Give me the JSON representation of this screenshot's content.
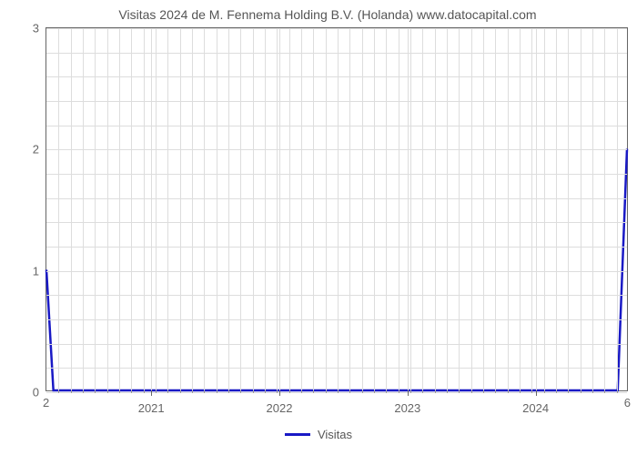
{
  "chart": {
    "type": "line",
    "title": "Visitas 2024 de M. Fennema Holding B.V. (Holanda) www.datocapital.com",
    "title_fontsize": 14,
    "title_color": "#555555",
    "background_color": "#ffffff",
    "plot_border_color": "#666666",
    "grid_color": "#dddddd",
    "line_color": "#1919c5",
    "line_width": 2.5,
    "y_axis": {
      "min": 0,
      "max": 3,
      "major_ticks": [
        0,
        1,
        2,
        3
      ],
      "minor_step": 0.2,
      "label_fontsize": 13,
      "label_color": "#666666"
    },
    "x_axis": {
      "left_label": "2",
      "right_label": "6",
      "major_labels": [
        "2021",
        "2022",
        "2023",
        "2024"
      ],
      "major_positions_pct": [
        18,
        40,
        62,
        84
      ],
      "minor_tick_count": 48,
      "label_fontsize": 13,
      "label_color": "#666666"
    },
    "series": {
      "name": "Visitas",
      "points_pct": [
        {
          "x": 0,
          "y": 33.3
        },
        {
          "x": 1.2,
          "y": 0
        },
        {
          "x": 98.4,
          "y": 0
        },
        {
          "x": 100,
          "y": 66.7
        }
      ]
    },
    "legend": {
      "label": "Visitas",
      "position": "bottom-center",
      "color": "#1919c5"
    }
  }
}
